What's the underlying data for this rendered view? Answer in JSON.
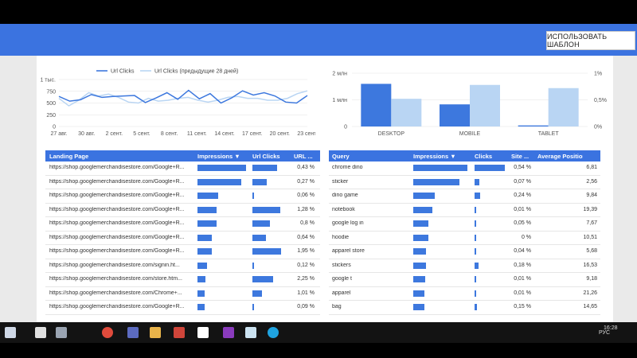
{
  "header": {
    "use_template_label": "ИСПОЛЬЗОВАТЬ ШАБЛОН"
  },
  "chart_data": [
    {
      "type": "line",
      "series": [
        {
          "name": "Url Clicks",
          "color": "#3d78de",
          "values": [
            640,
            540,
            570,
            680,
            620,
            640,
            650,
            660,
            510,
            610,
            720,
            580,
            770,
            590,
            700,
            500,
            610,
            760,
            670,
            720,
            650,
            520,
            500,
            660
          ]
        },
        {
          "name": "Url Clicks (предыдущие 28 дней)",
          "color": "#b9d5f3",
          "values": [
            600,
            440,
            560,
            720,
            650,
            690,
            620,
            520,
            500,
            600,
            540,
            560,
            600,
            620,
            560,
            520,
            560,
            620,
            640,
            600,
            600,
            560,
            560,
            600,
            700,
            760
          ]
        }
      ],
      "x_ticks": [
        "27 авг.",
        "30 авг.",
        "2 сент.",
        "5 сент.",
        "8 сент.",
        "11 сент.",
        "14 сент.",
        "17 сент.",
        "20 сент.",
        "23 сент."
      ],
      "y_ticks": [
        "1 тыс.",
        "750",
        "500",
        "250",
        "0"
      ],
      "ylim": [
        0,
        1000
      ],
      "legend_position": "top"
    },
    {
      "type": "bar",
      "categories": [
        "DESKTOP",
        "MOBILE",
        "TABLET"
      ],
      "series": [
        {
          "color": "#3d78de",
          "axis": "left",
          "values": [
            1600000,
            830000,
            40000
          ]
        },
        {
          "color": "#b9d5f3",
          "axis": "right",
          "values": [
            0.52,
            0.78,
            0.72
          ]
        }
      ],
      "y_ticks_left": [
        "2 млн",
        "1 млн",
        "0"
      ],
      "y_ticks_right": [
        "1%",
        "0,5%",
        "0%"
      ],
      "ylim_left": [
        0,
        2000000
      ],
      "ylim_right": [
        0,
        1
      ]
    }
  ],
  "landing_table": {
    "headers": [
      "Landing Page",
      "Impressions ▼",
      "Url Clicks",
      "URL ..."
    ],
    "rows": [
      {
        "page": "https://shop.googlemerchandisestore.com/Google+R...",
        "impressions": 1.0,
        "clicks": 0.78,
        "url": "0,43 %"
      },
      {
        "page": "https://shop.googlemerchandisestore.com/Google+R...",
        "impressions": 0.9,
        "clicks": 0.44,
        "url": "0,27 %"
      },
      {
        "page": "https://shop.googlemerchandisestore.com/Google+R...",
        "impressions": 0.42,
        "clicks": 0.06,
        "url": "0,06 %"
      },
      {
        "page": "https://shop.googlemerchandisestore.com/Google+R...",
        "impressions": 0.4,
        "clicks": 0.88,
        "url": "1,28 %"
      },
      {
        "page": "https://shop.googlemerchandisestore.com/Google+R...",
        "impressions": 0.4,
        "clicks": 0.55,
        "url": "0,8 %"
      },
      {
        "page": "https://shop.googlemerchandisestore.com/Google+R...",
        "impressions": 0.3,
        "clicks": 0.42,
        "url": "0,64 %"
      },
      {
        "page": "https://shop.googlemerchandisestore.com/Google+R...",
        "impressions": 0.3,
        "clicks": 0.9,
        "url": "1,95 %"
      },
      {
        "page": "https://shop.googlemerchandisestore.com/signin.ht...",
        "impressions": 0.2,
        "clicks": 0.06,
        "url": "0,12 %"
      },
      {
        "page": "https://shop.googlemerchandisestore.com/store.htm...",
        "impressions": 0.17,
        "clicks": 0.66,
        "url": "2,25 %"
      },
      {
        "page": "https://shop.googlemerchandisestore.com/Chrome+...",
        "impressions": 0.15,
        "clicks": 0.3,
        "url": "1,01 %"
      },
      {
        "page": "https://shop.googlemerchandisestore.com/Google+R...",
        "impressions": 0.15,
        "clicks": 0.03,
        "url": "0,09 %"
      }
    ]
  },
  "query_table": {
    "headers": [
      "Query",
      "Impressions ▼",
      "Clicks",
      "Site ...",
      "Average Position"
    ],
    "rows": [
      {
        "query": "chrome dino",
        "impressions": 1.0,
        "clicks": 1.0,
        "site": "0,54 %",
        "position": "6,81"
      },
      {
        "query": "sticker",
        "impressions": 0.85,
        "clicks": 0.15,
        "site": "0,07 %",
        "position": "2,56"
      },
      {
        "query": "dino game",
        "impressions": 0.4,
        "clicks": 0.18,
        "site": "0,24 %",
        "position": "9,84"
      },
      {
        "query": "notebook",
        "impressions": 0.36,
        "clicks": 0.02,
        "site": "0,01 %",
        "position": "19,39"
      },
      {
        "query": "google log in",
        "impressions": 0.28,
        "clicks": 0.02,
        "site": "0,05 %",
        "position": "7,67"
      },
      {
        "query": "hoodie",
        "impressions": 0.28,
        "clicks": 0.0,
        "site": "0 %",
        "position": "10,51"
      },
      {
        "query": "apparel store",
        "impressions": 0.24,
        "clicks": 0.02,
        "site": "0,04 %",
        "position": "5,68"
      },
      {
        "query": "stickers",
        "impressions": 0.24,
        "clicks": 0.12,
        "site": "0,18 %",
        "position": "16,53"
      },
      {
        "query": "google t",
        "impressions": 0.22,
        "clicks": 0.02,
        "site": "0,01 %",
        "position": "9,18"
      },
      {
        "query": "apparel",
        "impressions": 0.2,
        "clicks": 0.02,
        "site": "0,01 %",
        "position": "21,26"
      },
      {
        "query": "bag",
        "impressions": 0.2,
        "clicks": 0.08,
        "site": "0,15 %",
        "position": "14,65"
      }
    ]
  },
  "taskbar": {
    "time": "16:28",
    "language": "РУС",
    "icons": [
      "windows-icon",
      "search-icon",
      "task-view-icon",
      "chrome-icon",
      "save-icon",
      "folder-icon",
      "paint-icon",
      "app-icon",
      "onenote-icon",
      "apps-icon",
      "skype-icon"
    ]
  }
}
